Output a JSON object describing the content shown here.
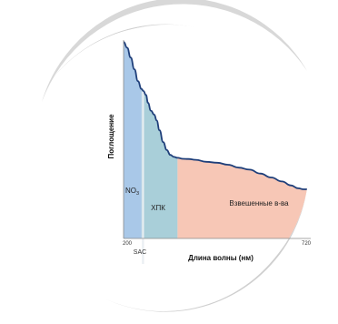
{
  "chart_data": {
    "type": "area",
    "title": "",
    "xlabel": "Длина волны (нм)",
    "ylabel": "Поглощение",
    "xlim": [
      200,
      720
    ],
    "ylim": [
      0,
      1
    ],
    "x_ticks": [
      "200",
      "720"
    ],
    "sac_label": "SAC",
    "grid": false,
    "regions": [
      {
        "label": "NO",
        "subscript": "3",
        "x_start": 200,
        "x_end": 250,
        "color": "#a9c8e8"
      },
      {
        "label": "ХПК",
        "x_start": 250,
        "x_end": 350,
        "color": "#a9cfd9"
      },
      {
        "label": "Взвешенные в-ва",
        "x_start": 350,
        "x_end": 720,
        "color": "#f7c7b6"
      }
    ],
    "sac_marker_x": 254,
    "curve": {
      "color": "#1f3f7a",
      "x": [
        200,
        210,
        220,
        230,
        240,
        250,
        255,
        262,
        268,
        276,
        285,
        292,
        300,
        310,
        320,
        330,
        340,
        350,
        365,
        380,
        400,
        430,
        460,
        490,
        520,
        550,
        580,
        610,
        640,
        665,
        685,
        700,
        710,
        720
      ],
      "y": [
        1.0,
        0.97,
        0.92,
        0.86,
        0.8,
        0.76,
        0.75,
        0.73,
        0.69,
        0.65,
        0.63,
        0.6,
        0.55,
        0.49,
        0.45,
        0.425,
        0.415,
        0.41,
        0.405,
        0.404,
        0.4,
        0.39,
        0.385,
        0.375,
        0.36,
        0.35,
        0.33,
        0.31,
        0.29,
        0.27,
        0.255,
        0.25,
        0.25,
        0.25
      ]
    }
  }
}
